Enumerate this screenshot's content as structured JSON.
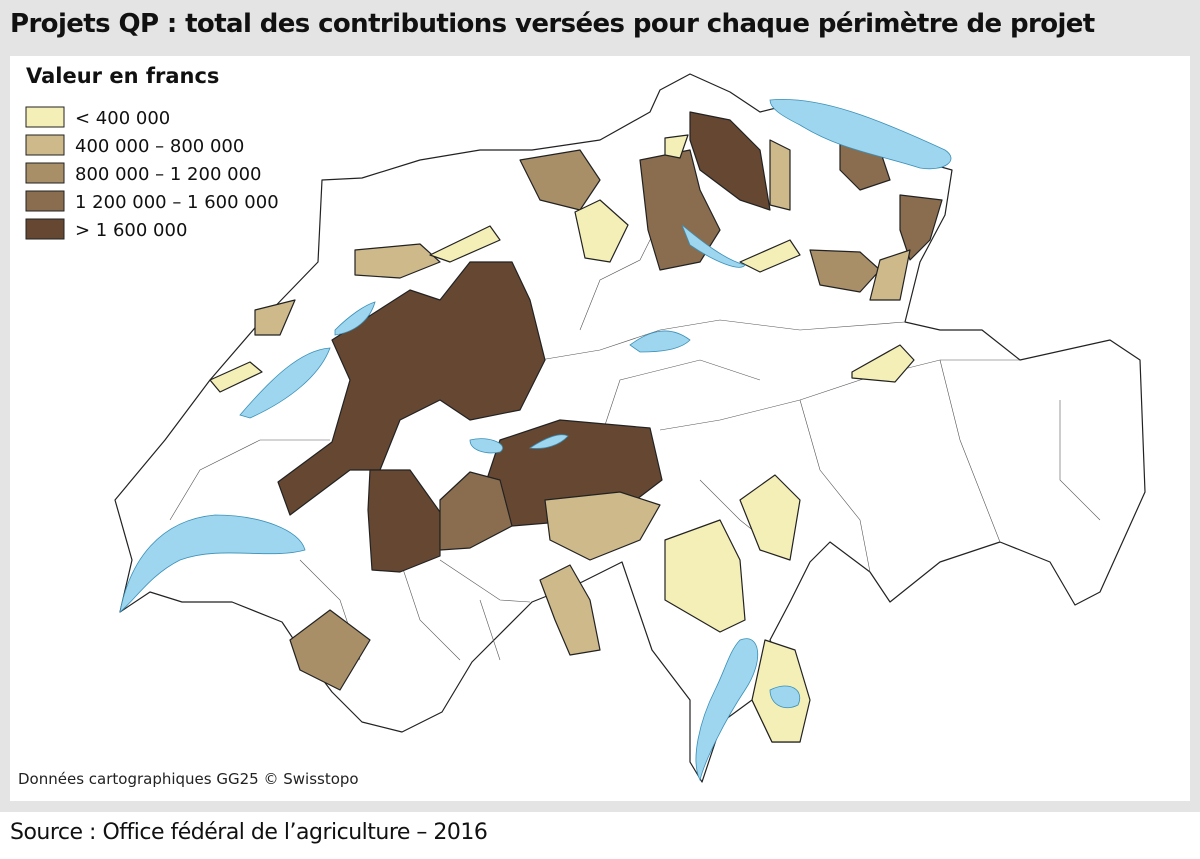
{
  "title": "Projets QP : total des contributions versées pour chaque périmètre de projet",
  "legend": {
    "title": "Valeur en francs",
    "items": [
      {
        "label": "< 400 000",
        "color": "#f4efb6"
      },
      {
        "label": "400 000 – 800 000",
        "color": "#cdb98a"
      },
      {
        "label": "800 000 – 1 200 000",
        "color": "#a88f68"
      },
      {
        "label": "1 200 000 – 1 600 000",
        "color": "#8a6d4f"
      },
      {
        "label": "> 1 600 000",
        "color": "#664832"
      }
    ]
  },
  "credit": "Données cartographiques GG25 © Swisstopo",
  "source": "Source : Office fédéral de l’agriculture – 2016"
}
